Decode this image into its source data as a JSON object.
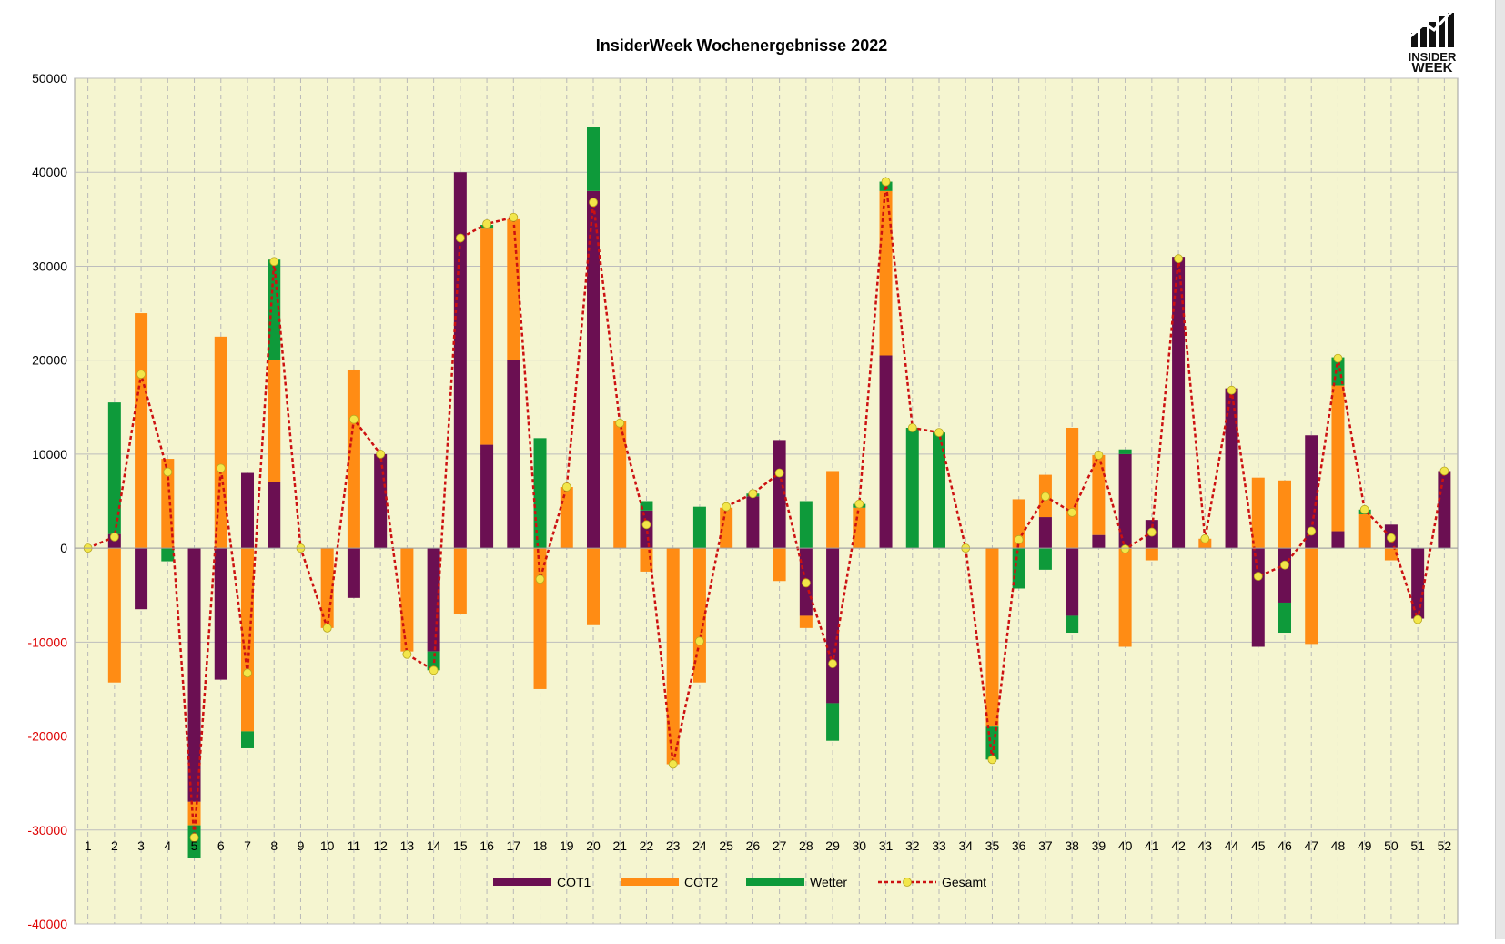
{
  "page": {
    "logo": {
      "line1": "INSIDER",
      "line2": "WEEK"
    }
  },
  "colors": {
    "plot_bg": "#f5f5d0",
    "grid": "#bdbdbd",
    "cot1": "#6b0f52",
    "cot2": "#ff8c14",
    "wetter": "#0e9a3a",
    "gesamt_line": "#cc1111",
    "gesamt_marker": "#f2e64a",
    "neg_tick": "#dd0000",
    "pos_tick": "#000000"
  },
  "chart_data": {
    "type": "bar",
    "stacked": true,
    "title": "InsiderWeek Wochenergebnisse 2022",
    "xlabel": "",
    "ylabel": "",
    "ylim": [
      -40000,
      50000
    ],
    "yticks": [
      50000,
      40000,
      30000,
      20000,
      10000,
      0,
      -10000,
      -20000,
      -30000,
      -40000
    ],
    "grid": true,
    "legend_position": "bottom",
    "categories": [
      "1",
      "2",
      "3",
      "4",
      "5",
      "6",
      "7",
      "8",
      "9",
      "10",
      "11",
      "12",
      "13",
      "14",
      "15",
      "16",
      "17",
      "18",
      "19",
      "20",
      "21",
      "22",
      "23",
      "24",
      "25",
      "26",
      "27",
      "28",
      "29",
      "30",
      "31",
      "32",
      "33",
      "34",
      "35",
      "36",
      "37",
      "38",
      "39",
      "40",
      "41",
      "42",
      "43",
      "44",
      "45",
      "46",
      "47",
      "48",
      "49",
      "50",
      "51",
      "52"
    ],
    "series": [
      {
        "name": "COT1",
        "kind": "bar",
        "values": [
          0,
          1500,
          -6500,
          0,
          -27000,
          -14000,
          8000,
          7000,
          0,
          0,
          -5300,
          10000,
          0,
          -11000,
          40000,
          11000,
          20000,
          0,
          0,
          38000,
          0,
          4000,
          0,
          0,
          0,
          5500,
          11500,
          -7200,
          -16500,
          0,
          20500,
          0,
          0,
          0,
          0,
          0,
          3300,
          -7200,
          1400,
          10000,
          3000,
          31000,
          0,
          17000,
          -10500,
          -5800,
          12000,
          1800,
          0,
          2500,
          -7500,
          8200
        ]
      },
      {
        "name": "COT2",
        "kind": "bar",
        "values": [
          0,
          -14300,
          25000,
          9500,
          -2500,
          22500,
          -19500,
          13000,
          0,
          -8500,
          19000,
          0,
          -11000,
          0,
          -7000,
          23000,
          15000,
          -15000,
          6500,
          -8200,
          13500,
          -2500,
          -23000,
          -14300,
          4300,
          0,
          -3500,
          -1300,
          8200,
          4300,
          17500,
          0,
          0,
          0,
          -19000,
          5200,
          4500,
          12800,
          8500,
          -10500,
          -1300,
          0,
          1000,
          0,
          7500,
          7200,
          -10200,
          15500,
          3600,
          -1300,
          0,
          0
        ]
      },
      {
        "name": "Wetter",
        "kind": "bar",
        "values": [
          0,
          14000,
          0,
          -1400,
          -3500,
          0,
          -1800,
          10700,
          0,
          0,
          0,
          0,
          0,
          -2000,
          0,
          400,
          0,
          11700,
          0,
          6800,
          0,
          1000,
          0,
          4400,
          0,
          300,
          0,
          5000,
          -4000,
          400,
          1000,
          12800,
          12300,
          0,
          -3500,
          -4300,
          -2300,
          -1800,
          0,
          500,
          0,
          0,
          0,
          0,
          0,
          -3200,
          0,
          3000,
          500,
          0,
          0,
          0
        ]
      },
      {
        "name": "Gesamt",
        "kind": "line",
        "values": [
          0,
          1200,
          18500,
          8100,
          -30800,
          8500,
          -13300,
          30500,
          0,
          -8500,
          13700,
          10000,
          -11300,
          -13000,
          33000,
          34500,
          35200,
          -3300,
          6500,
          36800,
          13300,
          2500,
          -23000,
          -9900,
          4400,
          5800,
          8000,
          -3700,
          -12300,
          4700,
          39000,
          12800,
          12300,
          0,
          -22500,
          900,
          5500,
          3800,
          9900,
          -100,
          1700,
          30800,
          1000,
          16800,
          -3000,
          -1800,
          1800,
          20200,
          4100,
          1100,
          -7600,
          8200
        ]
      }
    ]
  }
}
